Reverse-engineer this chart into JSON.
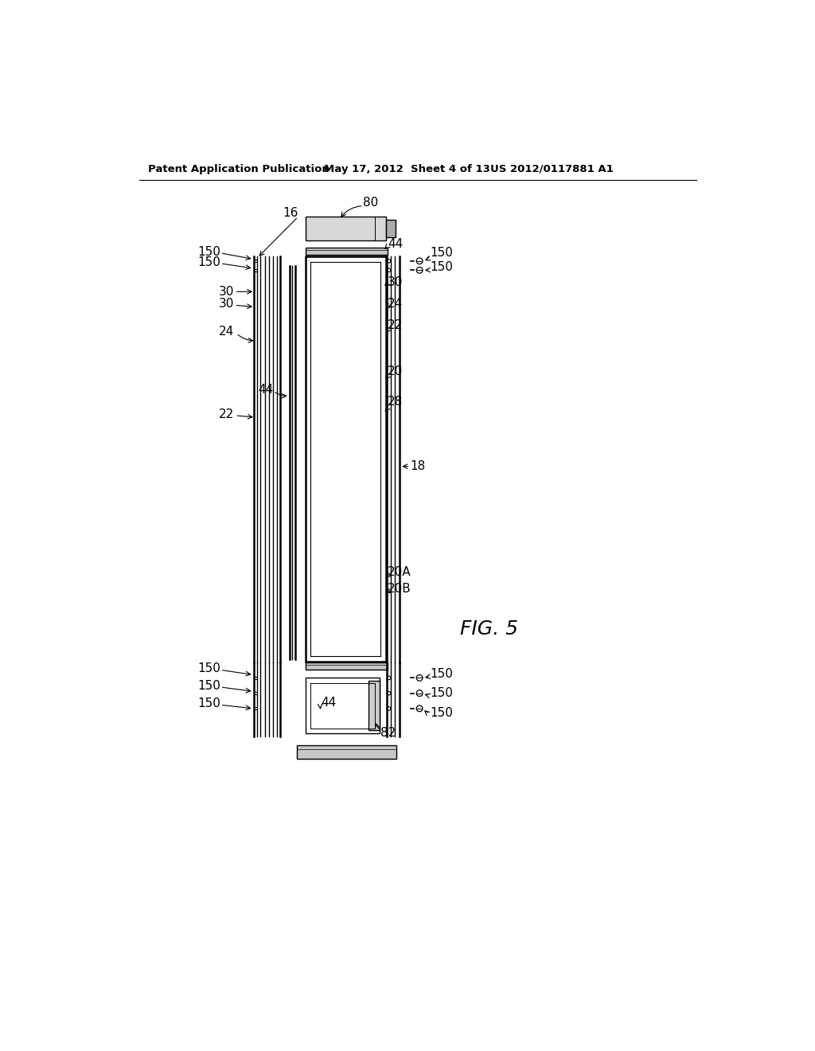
{
  "bg_color": "#ffffff",
  "header_left": "Patent Application Publication",
  "header_mid": "May 17, 2012  Sheet 4 of 13",
  "header_right": "US 2012/0117881 A1",
  "fig_label": "FIG. 5",
  "annotation_fontsize": 11,
  "header_fontsize": 9.5
}
